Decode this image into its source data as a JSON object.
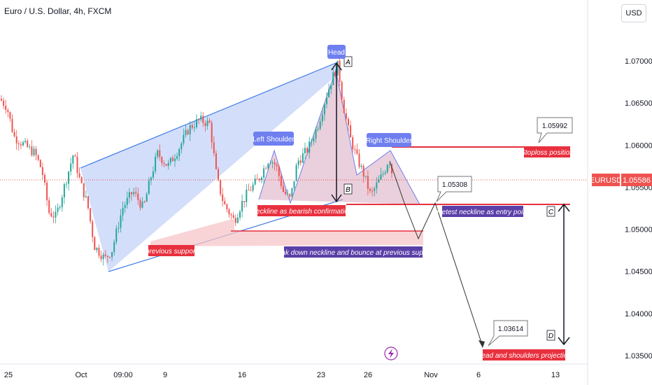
{
  "header": {
    "title": "Euro / U.S. Dollar, 4h, FXCM",
    "currency_button": "USD"
  },
  "chart_data": {
    "type": "candlestick",
    "ylim": [
      1.0345,
      1.0755
    ],
    "y_ticks": [
      "1.07000",
      "1.06500",
      "1.06000",
      "1.05500",
      "1.05000",
      "1.04500",
      "1.04000",
      "1.03500"
    ],
    "y_tick_values": [
      1.07,
      1.065,
      1.06,
      1.055,
      1.05,
      1.045,
      1.04,
      1.035
    ],
    "x_ticks": [
      "25",
      "Oct",
      "09:00",
      "9",
      "16",
      "23",
      "26",
      "Nov",
      "6",
      "13"
    ],
    "current_price": {
      "symbol": "EURUSD",
      "value": "1.05586",
      "level": 1.05586
    },
    "series_color_up": "#26a69a",
    "series_color_down": "#ef5350",
    "annotations": {
      "head": "Head",
      "left_shoulder": "Left Shoulder",
      "right_shoulder": "Right Shoulder",
      "neckline": "Neckline as bearish confirmation",
      "previous_support": "previous support",
      "breakdown": "break down neckline and bounce at previous support",
      "retest": "Retest neckline as entry point",
      "stoploss": "Stoploss position",
      "projection": "Head and shoulders projection",
      "marker_a": "A",
      "marker_b": "B",
      "marker_c": "C",
      "marker_d": "D",
      "callout_stop": "1.05992",
      "callout_retest": "1.05308",
      "callout_target": "1.03614"
    },
    "levels": {
      "stoploss": 1.05992,
      "neckline": 1.05308,
      "previous_support": 1.0496,
      "target": 1.03614
    },
    "colors": {
      "label_red": "#e8303e",
      "label_purple": "#5b3fa8",
      "shape_blue": "#6f7ff0",
      "channel_line": "#3f7ae8"
    }
  }
}
